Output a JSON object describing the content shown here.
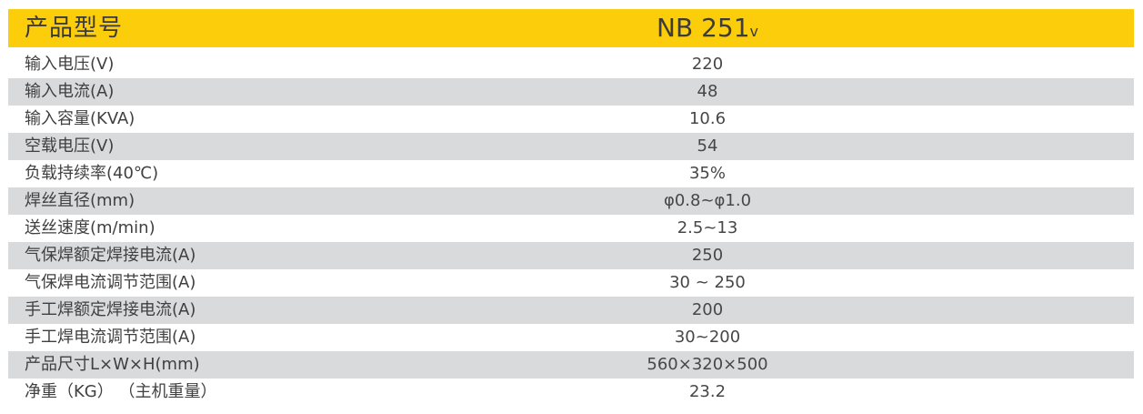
{
  "colors": {
    "header_bg": "#FCCD0B",
    "row_alt_bg": "#D9DADC",
    "text": "#404040"
  },
  "header": {
    "label": "产品型号",
    "model": "NB 251",
    "model_suffix": "v"
  },
  "rows": [
    {
      "label": "输入电压(V)",
      "value": "220"
    },
    {
      "label": "输入电流(A)",
      "value": "48"
    },
    {
      "label": "输入容量(KVA)",
      "value": "10.6"
    },
    {
      "label": "空载电压(V)",
      "value": "54"
    },
    {
      "label": "负载持续率(40℃)",
      "value": "35%"
    },
    {
      "label": "焊丝直径(mm)",
      "value": "φ0.8~φ1.0"
    },
    {
      "label": "送丝速度(m/min)",
      "value": "2.5~13"
    },
    {
      "label": "气保焊额定焊接电流(A)",
      "value": "250"
    },
    {
      "label": "气保焊电流调节范围(A)",
      "value": "30 ~ 250"
    },
    {
      "label": "手工焊额定焊接电流(A)",
      "value": "200"
    },
    {
      "label": "手工焊电流调节范围(A)",
      "value": "30~200"
    },
    {
      "label": "产品尺寸L×W×H(mm)",
      "value": "560×320×500"
    },
    {
      "label": "净重（KG） （主机重量）",
      "value": "23.2"
    }
  ]
}
